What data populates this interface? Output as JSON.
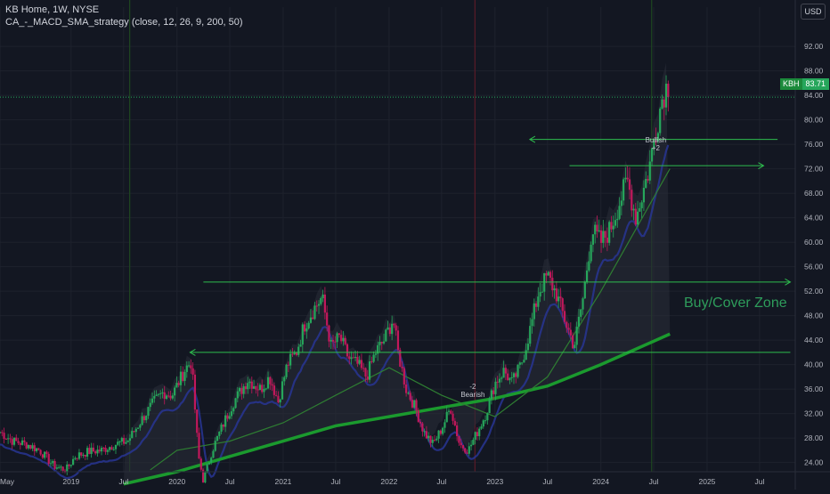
{
  "header": {
    "title": "KB Home, 1W, NYSE",
    "indicator": "CA_-_MACD_SMA_strategy (close, 12, 26, 9, 200, 50)"
  },
  "currency": "USD",
  "last_price": {
    "symbol": "KBH",
    "value": "83.71",
    "numeric": 83.71
  },
  "zone_label": "Buy/Cover Zone",
  "annotations": [
    {
      "id": "bullish",
      "lines": [
        "Bullish",
        "+2"
      ],
      "date": "2024-07-15",
      "price": 77.0
    },
    {
      "id": "bearish",
      "lines": [
        "-2",
        "Bearish"
      ],
      "date": "2022-10-24",
      "price": 36.5
    }
  ],
  "colors": {
    "background": "#131722",
    "up": "#26a65b",
    "down": "#c2185b",
    "sma50": "#2e7d32",
    "sma200": "#1b9a2e",
    "macd_band": "#283593",
    "arrow": "#2ebd4e",
    "grid": "#1e222d"
  },
  "chart_data": {
    "type": "candlestick",
    "y_range": [
      22.5,
      95.5
    ],
    "x_range": [
      "2018-05-01",
      "2025-11-01"
    ],
    "y_ticks": [
      24,
      28,
      32,
      36,
      40,
      44,
      48,
      52,
      56,
      60,
      64,
      68,
      72,
      76,
      80,
      84,
      88,
      92
    ],
    "y_tick_labels": [
      "24.00",
      "28.00",
      "32.00",
      "36.00",
      "40.00",
      "44.00",
      "48.00",
      "52.00",
      "56.00",
      "60.00",
      "64.00",
      "68.00",
      "72.00",
      "76.00",
      "80.00",
      "84.00",
      "88.00",
      "92.00"
    ],
    "x_ticks": [
      {
        "label": "May",
        "date": "2018-05-01"
      },
      {
        "label": "2019",
        "date": "2019-01-01"
      },
      {
        "label": "Jul",
        "date": "2019-07-01"
      },
      {
        "label": "2020",
        "date": "2020-01-01"
      },
      {
        "label": "Jul",
        "date": "2020-07-01"
      },
      {
        "label": "2021",
        "date": "2021-01-01"
      },
      {
        "label": "Jul",
        "date": "2021-07-01"
      },
      {
        "label": "2022",
        "date": "2022-01-01"
      },
      {
        "label": "Jul",
        "date": "2022-07-01"
      },
      {
        "label": "2023",
        "date": "2023-01-01"
      },
      {
        "label": "Jul",
        "date": "2023-07-01"
      },
      {
        "label": "2024",
        "date": "2024-01-01"
      },
      {
        "label": "Jul",
        "date": "2024-07-01"
      },
      {
        "label": "2025",
        "date": "2025-01-01"
      },
      {
        "label": "Jul",
        "date": "2025-07-01"
      }
    ],
    "last_price_line": 83.71,
    "close_path": [
      [
        "2018-05-01",
        29.0
      ],
      [
        "2018-06-15",
        27.5
      ],
      [
        "2018-08-01",
        27.0
      ],
      [
        "2018-09-15",
        26.0
      ],
      [
        "2018-11-01",
        23.5
      ],
      [
        "2018-12-15",
        22.8
      ],
      [
        "2019-01-15",
        25.0
      ],
      [
        "2019-03-01",
        25.8
      ],
      [
        "2019-04-15",
        26.0
      ],
      [
        "2019-06-01",
        27.0
      ],
      [
        "2019-07-15",
        27.5
      ],
      [
        "2019-09-01",
        31.0
      ],
      [
        "2019-10-15",
        34.0
      ],
      [
        "2019-11-15",
        35.5
      ],
      [
        "2019-12-15",
        35.0
      ],
      [
        "2020-02-01",
        39.5
      ],
      [
        "2020-02-20",
        40.5
      ],
      [
        "2020-03-15",
        25.0
      ],
      [
        "2020-04-01",
        21.0
      ],
      [
        "2020-05-01",
        26.0
      ],
      [
        "2020-06-15",
        31.0
      ],
      [
        "2020-07-15",
        34.0
      ],
      [
        "2020-09-01",
        37.5
      ],
      [
        "2020-10-15",
        36.0
      ],
      [
        "2020-11-15",
        38.0
      ],
      [
        "2020-12-15",
        34.0
      ],
      [
        "2021-01-15",
        40.0
      ],
      [
        "2021-02-15",
        42.0
      ],
      [
        "2021-03-15",
        46.5
      ],
      [
        "2021-04-15",
        49.0
      ],
      [
        "2021-05-15",
        51.0
      ],
      [
        "2021-06-15",
        43.0
      ],
      [
        "2021-07-15",
        44.5
      ],
      [
        "2021-08-15",
        41.0
      ],
      [
        "2021-09-15",
        40.0
      ],
      [
        "2021-10-15",
        38.0
      ],
      [
        "2021-11-15",
        42.0
      ],
      [
        "2021-12-15",
        44.0
      ],
      [
        "2022-01-15",
        47.5
      ],
      [
        "2022-02-01",
        42.0
      ],
      [
        "2022-03-01",
        36.0
      ],
      [
        "2022-04-01",
        33.0
      ],
      [
        "2022-05-01",
        29.0
      ],
      [
        "2022-06-01",
        27.0
      ],
      [
        "2022-07-01",
        29.5
      ],
      [
        "2022-08-01",
        33.0
      ],
      [
        "2022-09-01",
        27.0
      ],
      [
        "2022-10-01",
        26.0
      ],
      [
        "2022-11-01",
        29.0
      ],
      [
        "2022-12-01",
        32.0
      ],
      [
        "2023-01-01",
        37.0
      ],
      [
        "2023-02-01",
        39.0
      ],
      [
        "2023-03-01",
        37.0
      ],
      [
        "2023-04-01",
        40.0
      ],
      [
        "2023-05-01",
        45.5
      ],
      [
        "2023-06-01",
        52.0
      ],
      [
        "2023-07-01",
        54.5
      ],
      [
        "2023-08-01",
        51.5
      ],
      [
        "2023-09-01",
        47.0
      ],
      [
        "2023-10-01",
        43.0
      ],
      [
        "2023-11-01",
        51.0
      ],
      [
        "2023-12-01",
        62.0
      ],
      [
        "2024-01-01",
        60.0
      ],
      [
        "2024-02-01",
        62.0
      ],
      [
        "2024-03-01",
        66.0
      ],
      [
        "2024-04-01",
        70.0
      ],
      [
        "2024-05-01",
        64.0
      ],
      [
        "2024-06-15",
        72.0
      ],
      [
        "2024-07-15",
        80.0
      ],
      [
        "2024-08-01",
        84.0
      ],
      [
        "2024-08-15",
        85.5
      ],
      [
        "2024-08-26",
        83.71
      ]
    ],
    "sma50": [
      [
        "2019-10-01",
        22.8
      ],
      [
        "2020-01-01",
        26.0
      ],
      [
        "2020-07-01",
        27.5
      ],
      [
        "2021-01-01",
        30.5
      ],
      [
        "2021-07-01",
        35.0
      ],
      [
        "2022-01-01",
        39.5
      ],
      [
        "2022-07-01",
        35.0
      ],
      [
        "2023-01-01",
        31.5
      ],
      [
        "2023-07-01",
        38.0
      ],
      [
        "2024-01-01",
        52.0
      ],
      [
        "2024-08-26",
        72.0
      ]
    ],
    "sma200": [
      [
        "2019-07-01",
        20.5
      ],
      [
        "2020-01-01",
        22.5
      ],
      [
        "2020-07-01",
        25.0
      ],
      [
        "2021-01-01",
        27.5
      ],
      [
        "2021-07-01",
        30.0
      ],
      [
        "2022-01-01",
        31.5
      ],
      [
        "2022-07-01",
        33.0
      ],
      [
        "2023-01-01",
        34.5
      ],
      [
        "2023-07-01",
        36.5
      ],
      [
        "2024-01-01",
        40.0
      ],
      [
        "2024-08-26",
        45.0
      ]
    ],
    "horizontal_rays": [
      {
        "price": 42.0,
        "from": "2020-02-15",
        "to": "2025-10-15",
        "arrow": "left"
      },
      {
        "price": 53.5,
        "from": "2020-04-01",
        "to": "2025-10-15",
        "arrow": "right"
      },
      {
        "price": 72.5,
        "from": "2023-09-15",
        "to": "2025-07-15",
        "arrow": "right"
      },
      {
        "price": 76.8,
        "from": "2023-05-01",
        "to": "2025-09-01",
        "arrow": "left"
      }
    ],
    "vertical_markers": [
      {
        "date": "2019-07-22",
        "color": "#1e4620"
      },
      {
        "date": "2022-10-24",
        "color": "#5a1a28"
      },
      {
        "date": "2024-06-24",
        "color": "#1e4620"
      }
    ]
  }
}
